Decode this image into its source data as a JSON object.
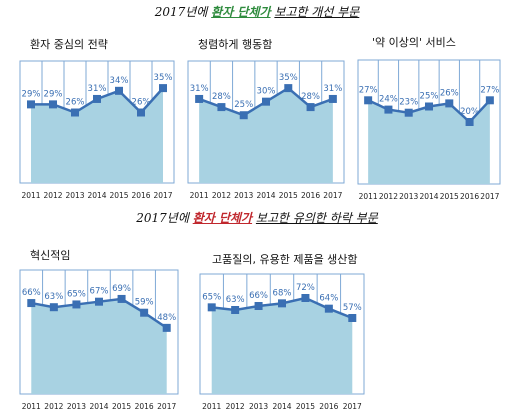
{
  "headings": {
    "top": {
      "prefix": "2017년에",
      "highlight": "환자 단체가",
      "suffix": "보고한 개선 부문"
    },
    "bottom": {
      "prefix": "2017년에",
      "highlight": "환자 단체가",
      "suffix": "보고한 유의한 하락 부문"
    }
  },
  "colors": {
    "line": "#3a6fb3",
    "fill": "#a8d2e2",
    "label": "#3a6fb3",
    "grid": "#7fa9d6",
    "heading_up": "#2e8b3d",
    "heading_down": "#c0272d"
  },
  "chart_data": [
    {
      "type": "area",
      "title": "환자 중심의 전략",
      "x": [
        "2011",
        "2012",
        "2013",
        "2014",
        "2015",
        "2016",
        "2017"
      ],
      "values": [
        29,
        29,
        26,
        31,
        34,
        26,
        35
      ],
      "labels": [
        "29%",
        "29%",
        "26%",
        "31%",
        "34%",
        "26%",
        "35%"
      ],
      "ylim": [
        0,
        45
      ]
    },
    {
      "type": "area",
      "title": "청렴하게 행동함",
      "x": [
        "2011",
        "2012",
        "2013",
        "2014",
        "2015",
        "2016",
        "2017"
      ],
      "values": [
        31,
        28,
        25,
        30,
        35,
        28,
        31
      ],
      "labels": [
        "31%",
        "28%",
        "25%",
        "30%",
        "35%",
        "28%",
        "31%"
      ],
      "ylim": [
        0,
        45
      ]
    },
    {
      "type": "area",
      "title": "'약 이상의' 서비스",
      "x": [
        "2011",
        "2012",
        "2013",
        "2014",
        "2015",
        "2016",
        "2017"
      ],
      "values": [
        27,
        24,
        23,
        25,
        26,
        20,
        27
      ],
      "labels": [
        "27%",
        "24%",
        "23%",
        "25%",
        "26%",
        "20%",
        "27%"
      ],
      "ylim": [
        0,
        40
      ]
    },
    {
      "type": "area",
      "title": "혁신적임",
      "x": [
        "2011",
        "2012",
        "2013",
        "2014",
        "2015",
        "2016",
        "2017"
      ],
      "values": [
        66,
        63,
        65,
        67,
        69,
        59,
        48
      ],
      "labels": [
        "66%",
        "63%",
        "65%",
        "67%",
        "69%",
        "59%",
        "48%"
      ],
      "ylim": [
        0,
        90
      ]
    },
    {
      "type": "area",
      "title": "고품질의, 유용한 제품을 생산함",
      "x": [
        "2011",
        "2012",
        "2013",
        "2014",
        "2015",
        "2016",
        "2017"
      ],
      "values": [
        65,
        63,
        66,
        68,
        72,
        64,
        57
      ],
      "labels": [
        "65%",
        "63%",
        "66%",
        "68%",
        "72%",
        "64%",
        "57%"
      ],
      "ylim": [
        0,
        90
      ]
    }
  ]
}
